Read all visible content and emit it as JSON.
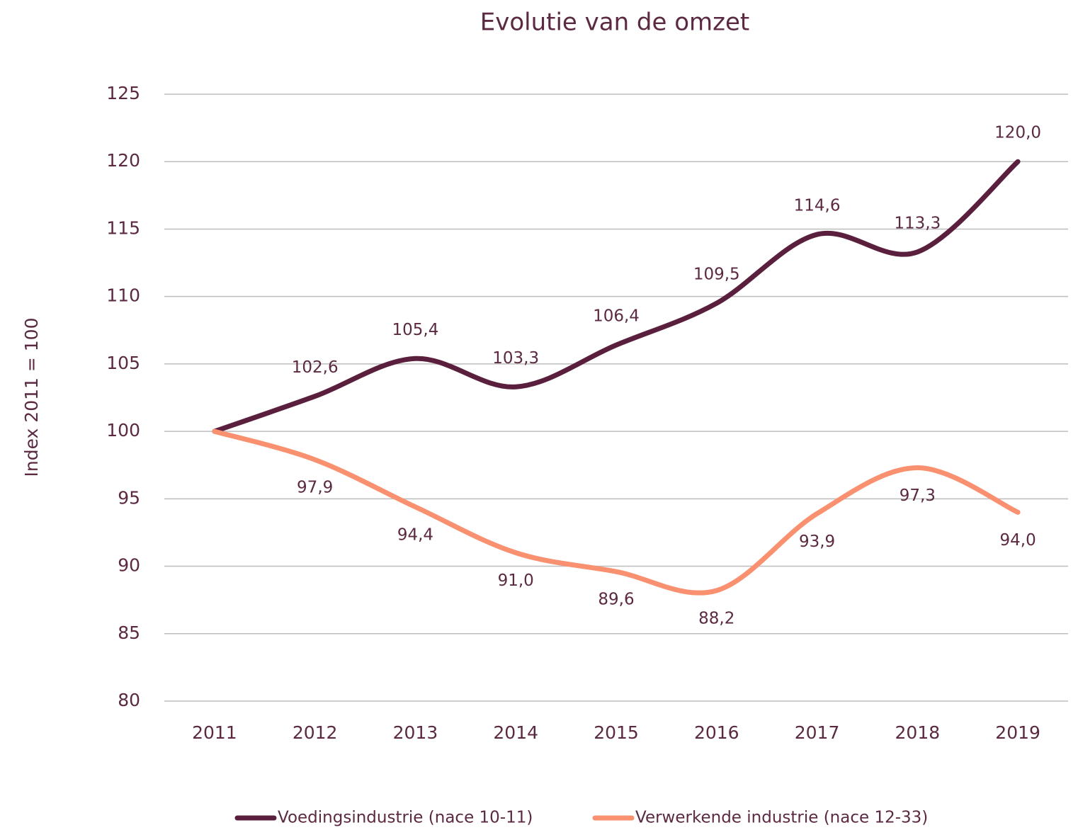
{
  "chart_data": {
    "type": "line",
    "title": "Evolutie van de omzet",
    "y_label": "Index 2011 = 100",
    "categories": [
      "2011",
      "2012",
      "2013",
      "2014",
      "2015",
      "2016",
      "2017",
      "2018",
      "2019"
    ],
    "series": [
      {
        "name": "Voedingsindustrie (nace 10-11)",
        "color": "#5b1f3e",
        "values": [
          100,
          102.6,
          105.4,
          103.3,
          106.4,
          109.5,
          114.6,
          113.3,
          120.0
        ],
        "value_labels": [
          null,
          "102,6",
          "105,4",
          "103,3",
          "106,4",
          "109,5",
          "114,6",
          "113,3",
          "120,0"
        ]
      },
      {
        "name": "Verwerkende industrie (nace 12-33)",
        "color": "#f9906f",
        "values": [
          100,
          97.9,
          94.4,
          91.0,
          89.6,
          88.2,
          93.9,
          97.3,
          94.0
        ],
        "value_labels": [
          null,
          "97,9",
          "94,4",
          "91,0",
          "89,6",
          "88,2",
          "93,9",
          "97,3",
          "94,0"
        ]
      }
    ],
    "ylim": [
      80,
      125
    ],
    "yticks": [
      80,
      85,
      90,
      95,
      100,
      105,
      110,
      115,
      120,
      125
    ],
    "grid": true,
    "legend": "bottom",
    "smooth": true
  }
}
